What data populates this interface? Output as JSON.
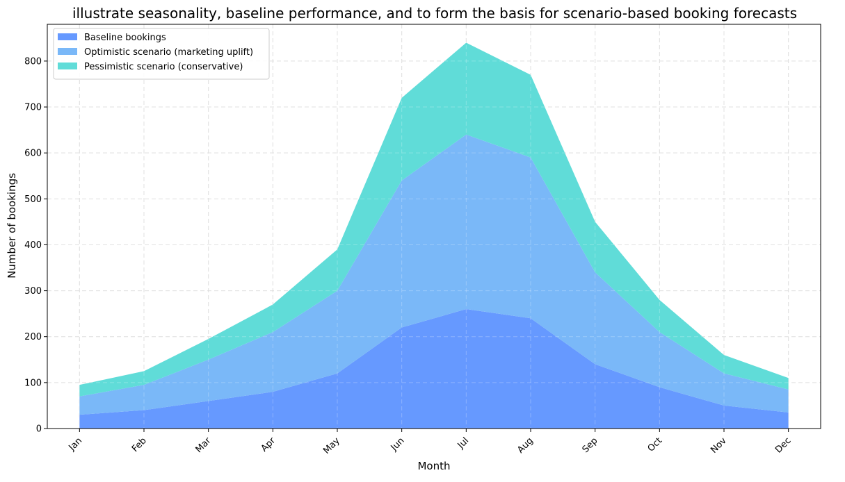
{
  "chart_data": {
    "type": "area",
    "stacked": true,
    "title": "illustrate seasonality, baseline performance, and to form the basis for scenario-based booking forecasts",
    "xlabel": "Month",
    "ylabel": "Number of bookings",
    "categories": [
      "Jan",
      "Feb",
      "Mar",
      "Apr",
      "May",
      "Jun",
      "Jul",
      "Aug",
      "Sep",
      "Oct",
      "Nov",
      "Dec"
    ],
    "yticks": [
      0,
      100,
      200,
      300,
      400,
      500,
      600,
      700,
      800
    ],
    "ylim": [
      0,
      880
    ],
    "grid": true,
    "legend_position": "top-left",
    "series": [
      {
        "name": "Baseline bookings",
        "color": "#6699ff",
        "values": [
          30,
          40,
          60,
          80,
          120,
          220,
          260,
          240,
          140,
          90,
          50,
          35
        ]
      },
      {
        "name": "Optimistic scenario (marketing uplift)",
        "color": "#7ab8f8",
        "values": [
          40,
          55,
          90,
          130,
          180,
          320,
          380,
          350,
          200,
          120,
          70,
          50
        ]
      },
      {
        "name": "Pessimistic scenario (conservative)",
        "color": "#60dcd8",
        "values": [
          25,
          30,
          45,
          60,
          90,
          180,
          200,
          180,
          110,
          70,
          40,
          25
        ]
      }
    ]
  }
}
